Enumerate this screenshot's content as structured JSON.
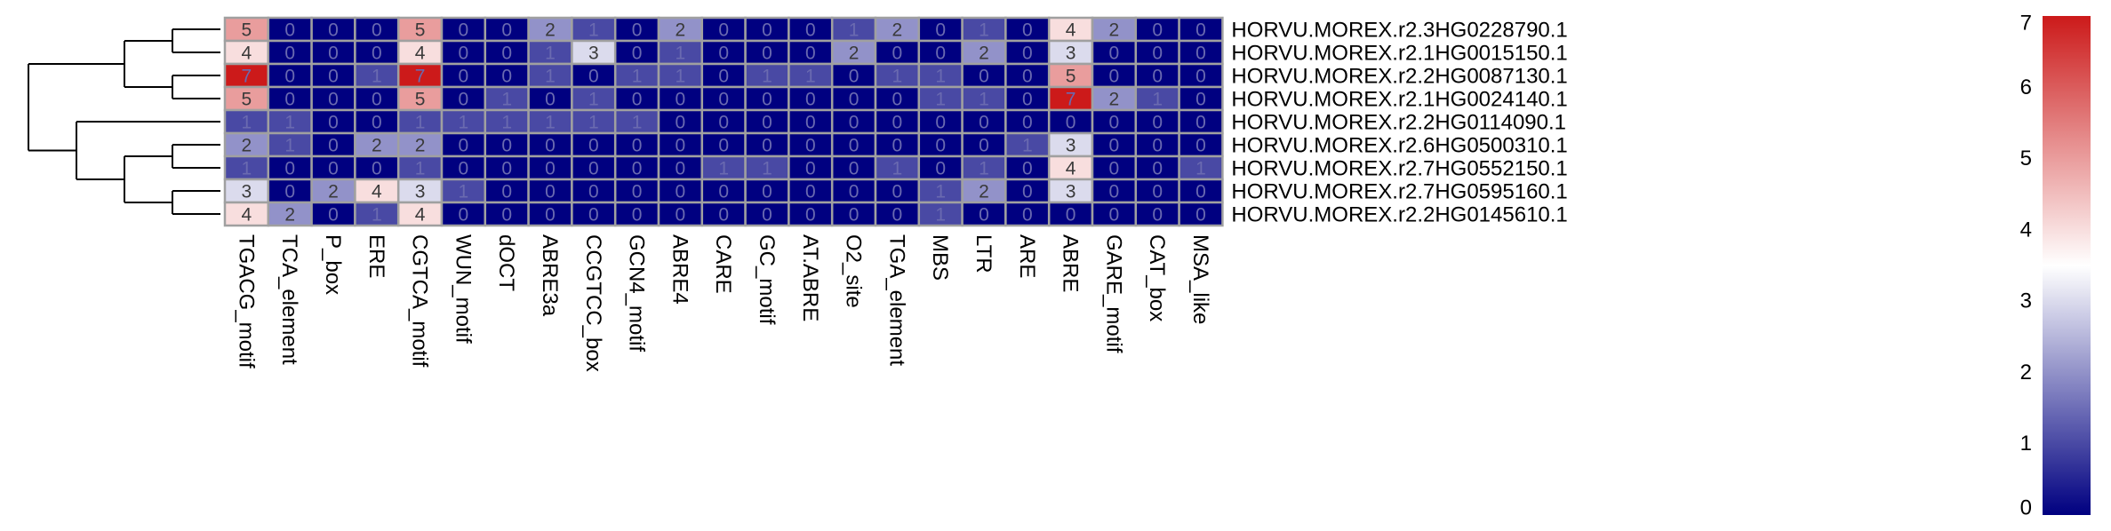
{
  "chart_data": {
    "type": "heatmap",
    "title": "",
    "rows": [
      "HORVU.MOREX.r2.3HG0228790.1",
      "HORVU.MOREX.r2.1HG0015150.1",
      "HORVU.MOREX.r2.2HG0087130.1",
      "HORVU.MOREX.r2.1HG0024140.1",
      "HORVU.MOREX.r2.2HG0114090.1",
      "HORVU.MOREX.r2.6HG0500310.1",
      "HORVU.MOREX.r2.7HG0552150.1",
      "HORVU.MOREX.r2.7HG0595160.1",
      "HORVU.MOREX.r2.2HG0145610.1"
    ],
    "columns": [
      "TGACG_motif",
      "TCA_element",
      "P_box",
      "ERE",
      "CGTCA_motif",
      "WUN_motif",
      "dOCT",
      "ABRE3a",
      "CCGTCC_box",
      "GCN4_motif",
      "ABRE4",
      "CARE",
      "GC_motif",
      "AT.ABRE",
      "O2_site",
      "TGA_element",
      "MBS",
      "LTR",
      "ARE",
      "ABRE",
      "GARE_motif",
      "CAT_box",
      "MSA_like"
    ],
    "values": [
      [
        5,
        0,
        0,
        0,
        5,
        0,
        0,
        2,
        1,
        0,
        2,
        0,
        0,
        0,
        1,
        2,
        0,
        1,
        0,
        4,
        2,
        0,
        0
      ],
      [
        4,
        0,
        0,
        0,
        4,
        0,
        0,
        1,
        3,
        0,
        1,
        0,
        0,
        0,
        2,
        0,
        0,
        2,
        0,
        3,
        0,
        0,
        0
      ],
      [
        7,
        0,
        0,
        1,
        7,
        0,
        0,
        1,
        0,
        1,
        1,
        0,
        1,
        1,
        0,
        1,
        1,
        0,
        0,
        5,
        0,
        0,
        0
      ],
      [
        5,
        0,
        0,
        0,
        5,
        0,
        1,
        0,
        1,
        0,
        0,
        0,
        0,
        0,
        0,
        0,
        1,
        1,
        0,
        7,
        2,
        1,
        0
      ],
      [
        1,
        1,
        0,
        0,
        1,
        1,
        1,
        1,
        1,
        1,
        0,
        0,
        0,
        0,
        0,
        0,
        0,
        0,
        0,
        0,
        0,
        0,
        0
      ],
      [
        2,
        1,
        0,
        2,
        2,
        0,
        0,
        0,
        0,
        0,
        0,
        0,
        0,
        0,
        0,
        0,
        0,
        0,
        1,
        3,
        0,
        0,
        0
      ],
      [
        1,
        0,
        0,
        0,
        1,
        0,
        0,
        0,
        0,
        0,
        0,
        1,
        1,
        0,
        0,
        1,
        0,
        1,
        0,
        4,
        0,
        0,
        1
      ],
      [
        3,
        0,
        2,
        4,
        3,
        1,
        0,
        0,
        0,
        0,
        0,
        0,
        0,
        0,
        0,
        0,
        1,
        2,
        0,
        3,
        0,
        0,
        0
      ],
      [
        4,
        2,
        0,
        1,
        4,
        0,
        0,
        0,
        0,
        0,
        0,
        0,
        0,
        0,
        0,
        0,
        1,
        0,
        0,
        0,
        0,
        0,
        0
      ]
    ],
    "legend": {
      "min": 0,
      "max": 7,
      "ticks": [
        "0",
        "1",
        "2",
        "3",
        "4",
        "5",
        "6",
        "7"
      ],
      "colors": {
        "low": "#000080",
        "mid": "#ffffff",
        "high": "#cc1a1a"
      },
      "placement": "right"
    },
    "dendrogram": "rows",
    "dendrogram_tree": [
      [
        [
          0,
          1
        ],
        [
          2,
          3
        ]
      ],
      [
        4,
        [
          [
            5,
            6
          ],
          [
            7,
            8
          ]
        ]
      ]
    ]
  }
}
